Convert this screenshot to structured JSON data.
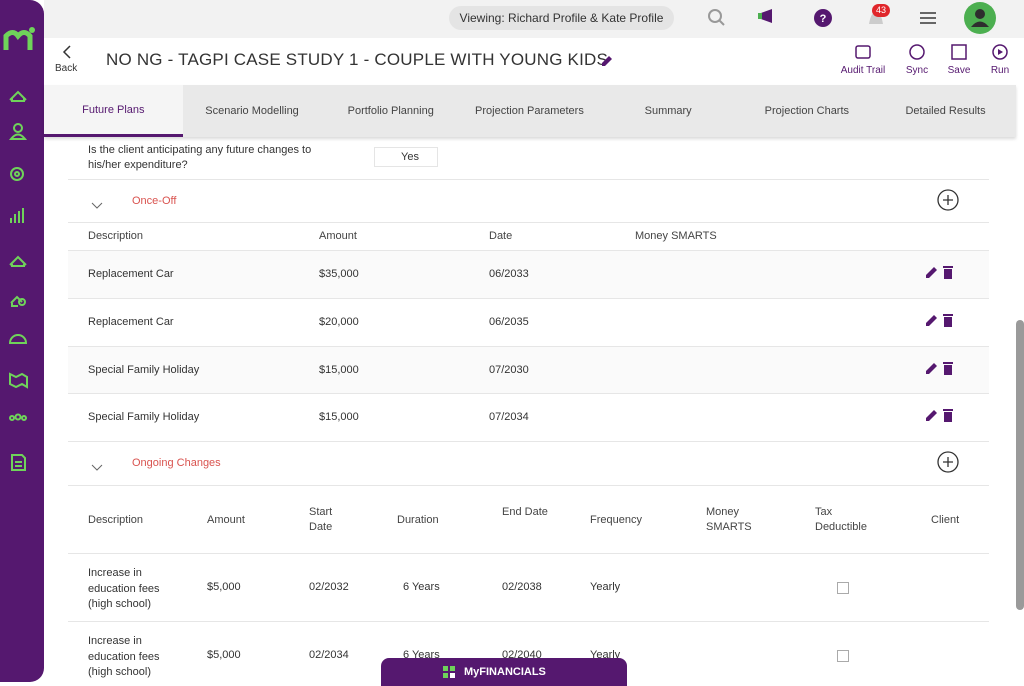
{
  "header": {
    "viewing": "Viewing: Richard Profile & Kate Profile",
    "notifications": "43"
  },
  "toolbar": {
    "back": "Back",
    "title": "NO NG - TAGPI CASE STUDY 1 - COUPLE WITH YOUNG KIDS",
    "actions": [
      "Audit Trail",
      "Sync",
      "Save",
      "Run"
    ]
  },
  "tabs": [
    "Future Plans",
    "Scenario Modelling",
    "Portfolio Planning",
    "Projection Parameters",
    "Summary",
    "Projection Charts",
    "Detailed Results"
  ],
  "question": {
    "text": "Is the client anticipating any future changes to his/her expenditure?",
    "answer": "Yes"
  },
  "once_off": {
    "title": "Once-Off",
    "columns": [
      "Description",
      "Amount",
      "Date",
      "Money SMARTS"
    ],
    "rows": [
      [
        "Replacement Car",
        "$35,000",
        "06/2033"
      ],
      [
        "Replacement Car",
        "$20,000",
        "06/2035"
      ],
      [
        "Special Family Holiday",
        "$15,000",
        "07/2030"
      ],
      [
        "Special Family Holiday",
        "$15,000",
        "07/2034"
      ]
    ]
  },
  "ongoing": {
    "title": "Ongoing Changes",
    "columns": [
      "Description",
      "Amount",
      "Start Date",
      "Duration",
      "End Date",
      "Frequency",
      "Money SMARTS",
      "Tax Deductible",
      "Client"
    ],
    "rows": [
      [
        "Increase in education fees (high school)",
        "$5,000",
        "02/2032",
        "6 Years",
        "02/2038",
        "Yearly"
      ],
      [
        "Increase in education fees (high school)",
        "$5,000",
        "02/2034",
        "6 Years",
        "02/2040",
        "Yearly"
      ]
    ]
  },
  "footer": {
    "label": "MyFINANCIALS"
  }
}
